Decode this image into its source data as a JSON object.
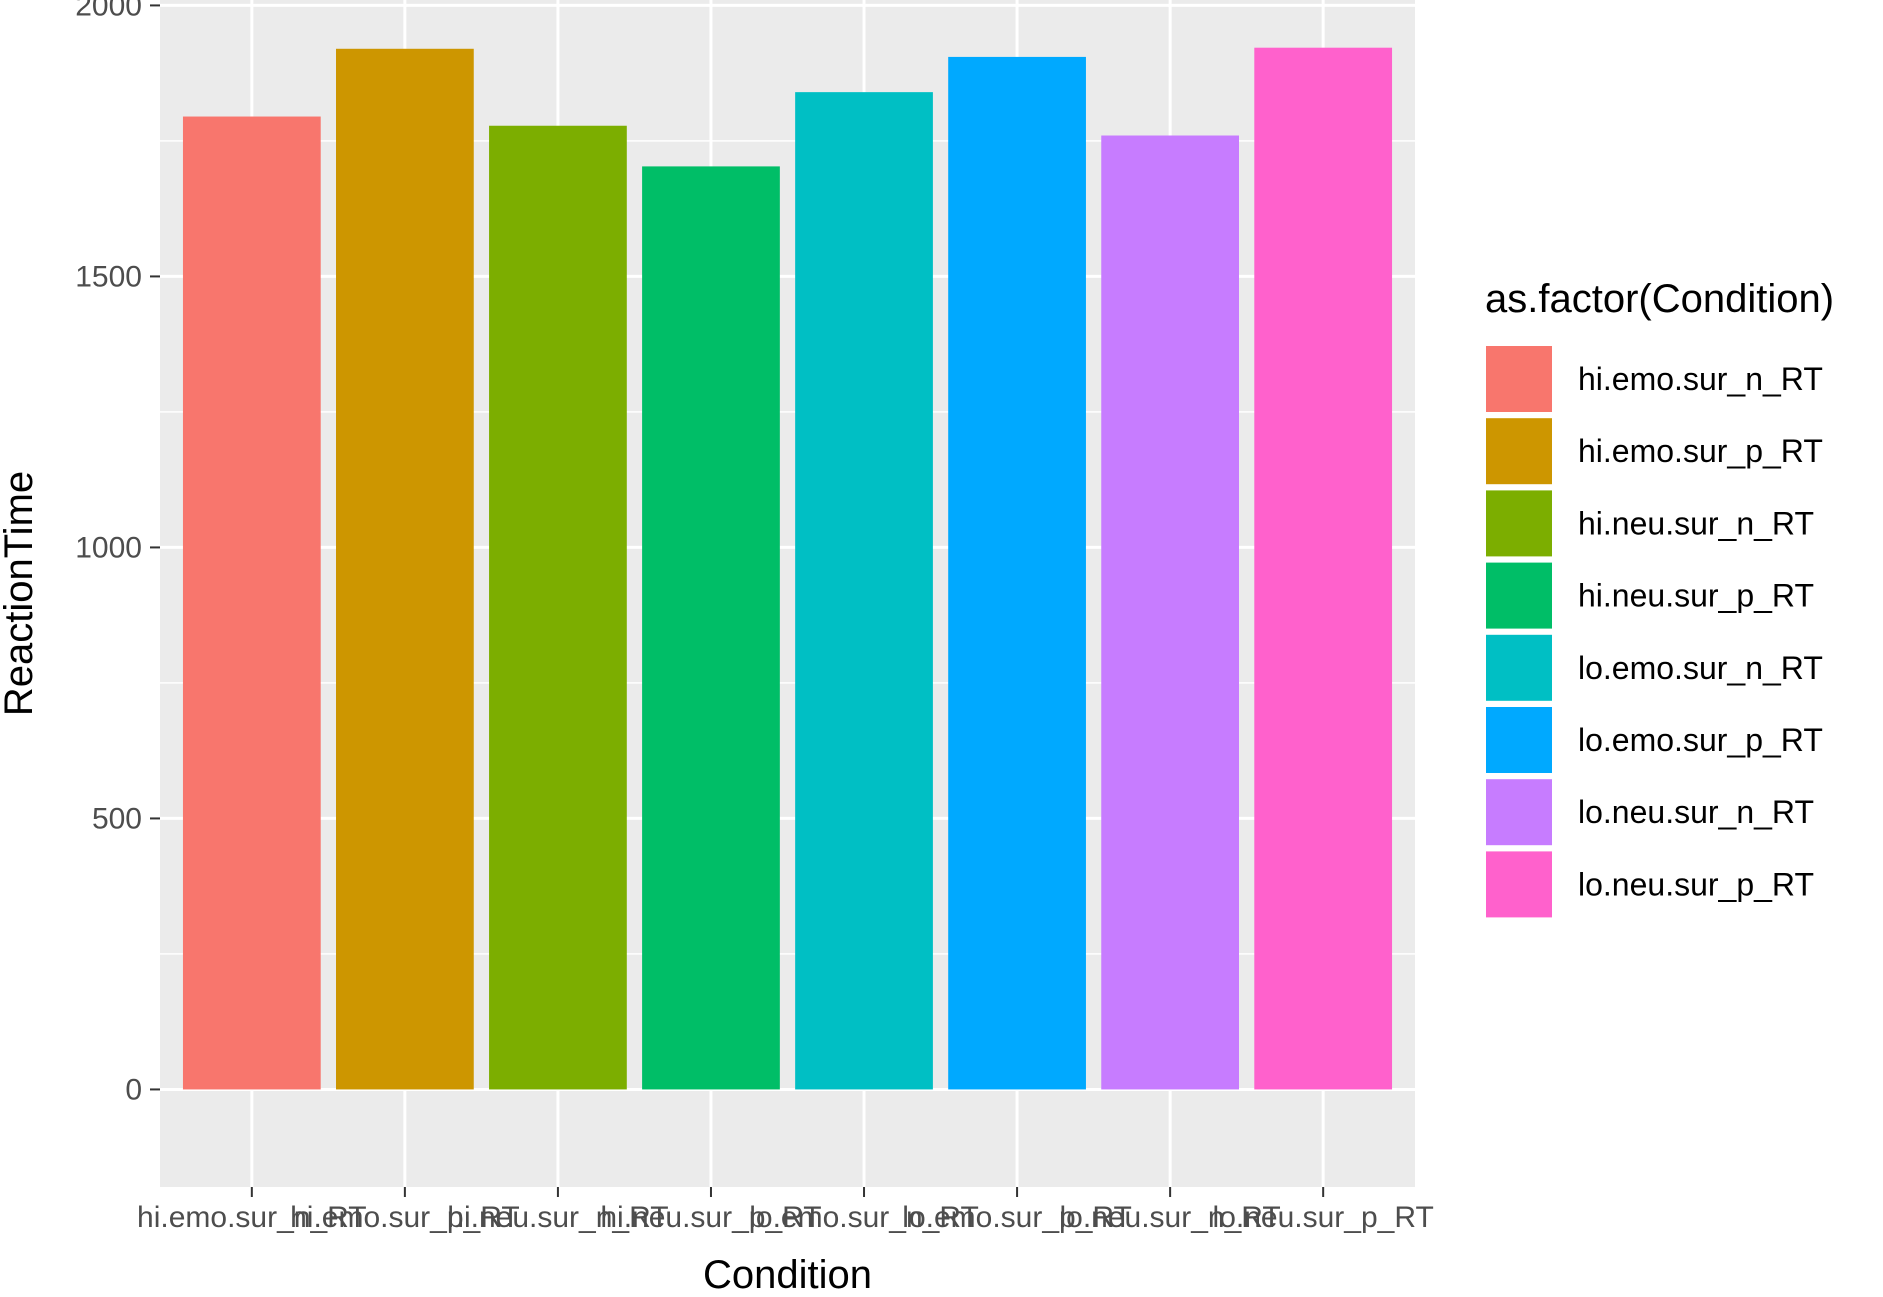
{
  "chart_data": {
    "type": "bar",
    "title": "",
    "xlabel": "Condition",
    "ylabel": "ReactionTime",
    "ylim": [
      -180,
      2010
    ],
    "yticks": [
      0,
      500,
      1000,
      1500,
      2000
    ],
    "categories": [
      "hi.emo.sur_n_RT",
      "hi.emo.sur_p_RT",
      "hi.neu.sur_n_RT",
      "hi.neu.sur_p_RT",
      "lo.emo.sur_n_RT",
      "lo.emo.sur_p_RT",
      "lo.neu.sur_n_RT",
      "lo.neu.sur_p_RT"
    ],
    "values": [
      1795,
      1920,
      1778,
      1703,
      1840,
      1905,
      1760,
      1922
    ],
    "colors": [
      "#F8766D",
      "#CD9600",
      "#7CAE00",
      "#00BE67",
      "#00BFC4",
      "#00A9FF",
      "#C77CFF",
      "#FF61CC"
    ],
    "grid": true,
    "panel_background": "#EBEBEB",
    "legend": {
      "title": "as.factor(Condition)",
      "position": "right",
      "entries": [
        "hi.emo.sur_n_RT",
        "hi.emo.sur_p_RT",
        "hi.neu.sur_n_RT",
        "hi.neu.sur_p_RT",
        "lo.emo.sur_n_RT",
        "lo.emo.sur_p_RT",
        "lo.neu.sur_n_RT",
        "lo.neu.sur_p_RT"
      ]
    }
  }
}
